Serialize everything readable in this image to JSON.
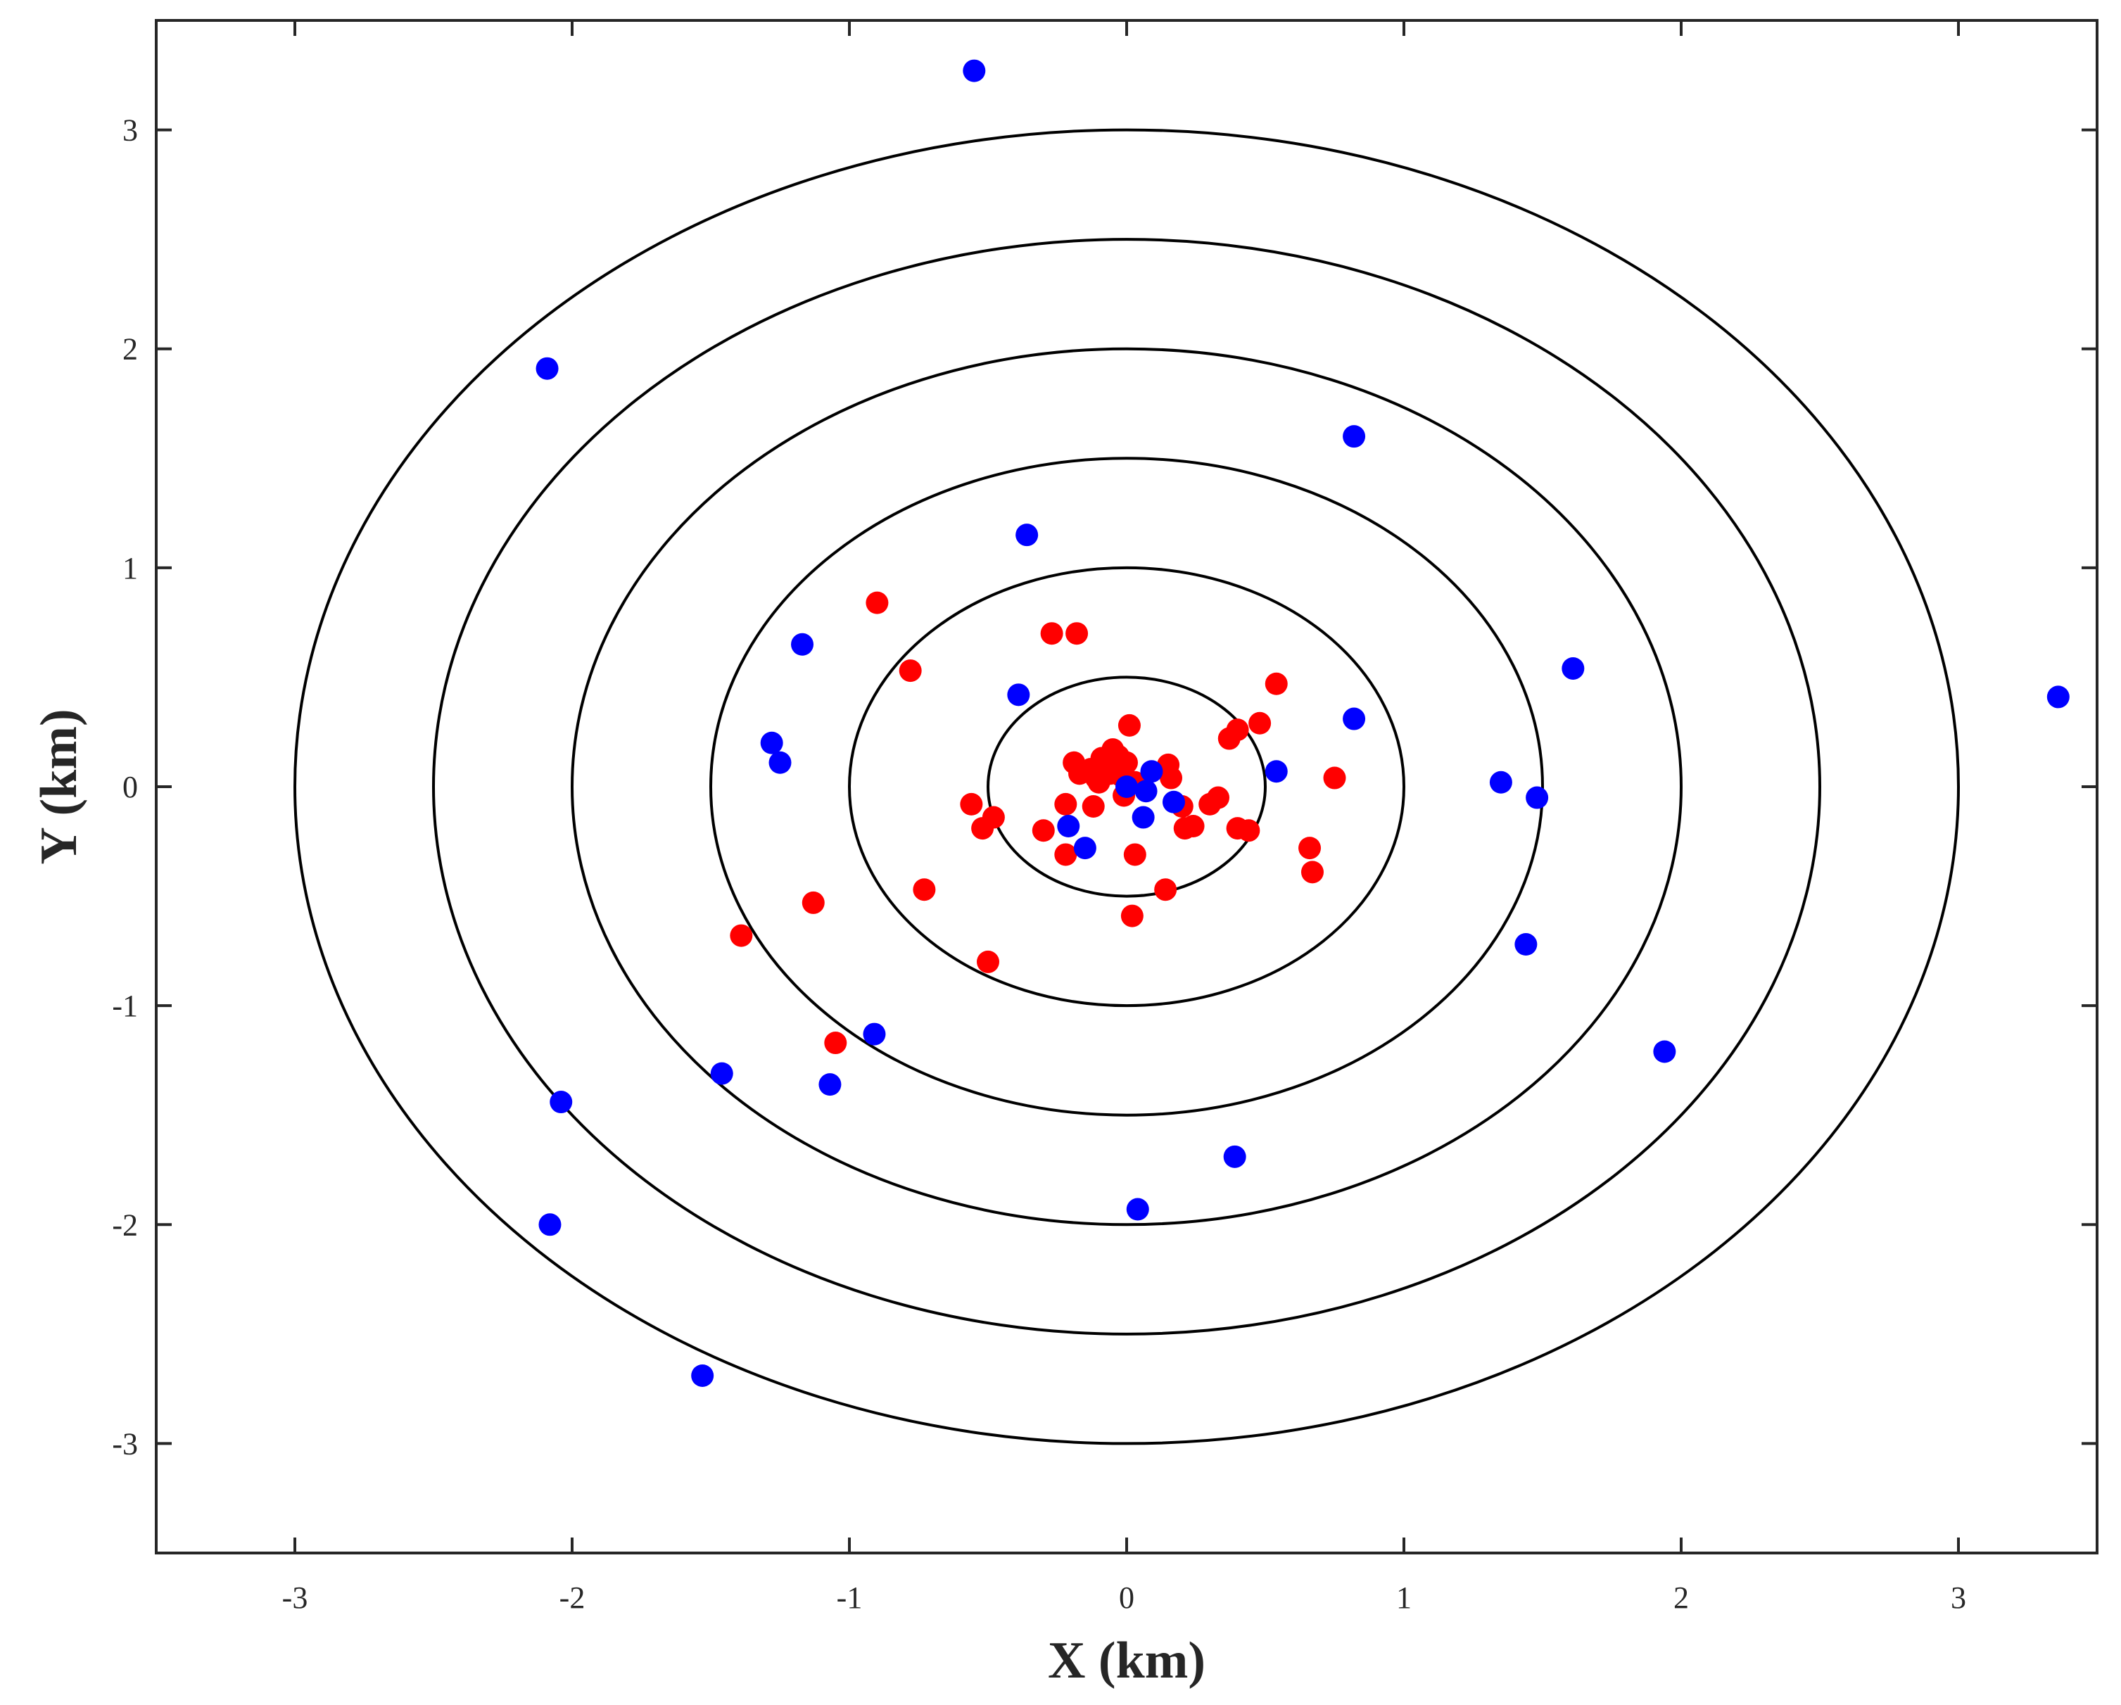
{
  "chart_data": {
    "type": "scatter",
    "title": "",
    "xlabel": "X (km)",
    "ylabel": "Y (km)",
    "xlim": [
      -3.5,
      3.5
    ],
    "ylim": [
      -3.5,
      3.5
    ],
    "x_ticks": [
      -3,
      -2,
      -1,
      0,
      1,
      2,
      3
    ],
    "y_ticks": [
      -3,
      -2,
      -1,
      0,
      1,
      2,
      3
    ],
    "x_tick_labels": [
      "-3",
      "-2",
      "-1",
      "0",
      "1",
      "2",
      "3"
    ],
    "y_tick_labels": [
      "-3",
      "-2",
      "-1",
      "0",
      "1",
      "2",
      "3"
    ],
    "grid": false,
    "box": true,
    "concentric_circles": {
      "center": [
        0,
        0
      ],
      "radii": [
        0.5,
        1.0,
        1.5,
        2.0,
        2.5,
        3.0
      ],
      "color": "#000000"
    },
    "series": [
      {
        "color": "#ff0000",
        "points": [
          [
            -0.9,
            0.84
          ],
          [
            -0.78,
            0.53
          ],
          [
            -0.27,
            0.7
          ],
          [
            -0.18,
            0.7
          ],
          [
            0.54,
            0.47
          ],
          [
            0.48,
            0.29
          ],
          [
            0.4,
            0.26
          ],
          [
            0.37,
            0.22
          ],
          [
            0.01,
            0.28
          ],
          [
            0.75,
            0.04
          ],
          [
            -0.19,
            0.11
          ],
          [
            -0.17,
            0.06
          ],
          [
            -0.13,
            0.08
          ],
          [
            -0.11,
            0.04
          ],
          [
            -0.09,
            0.13
          ],
          [
            -0.07,
            0.1
          ],
          [
            -0.05,
            0.17
          ],
          [
            -0.03,
            0.14
          ],
          [
            -0.02,
            0.05
          ],
          [
            0.0,
            0.11
          ],
          [
            -0.1,
            0.02
          ],
          [
            -0.06,
            0.06
          ],
          [
            0.03,
            0.02
          ],
          [
            -0.01,
            -0.04
          ],
          [
            0.15,
            0.1
          ],
          [
            0.16,
            0.04
          ],
          [
            0.2,
            -0.09
          ],
          [
            0.3,
            -0.08
          ],
          [
            0.33,
            -0.05
          ],
          [
            0.21,
            -0.19
          ],
          [
            0.24,
            -0.18
          ],
          [
            0.4,
            -0.19
          ],
          [
            0.44,
            -0.2
          ],
          [
            0.66,
            -0.28
          ],
          [
            0.67,
            -0.39
          ],
          [
            0.14,
            -0.47
          ],
          [
            0.03,
            -0.31
          ],
          [
            0.02,
            -0.59
          ],
          [
            -0.12,
            -0.09
          ],
          [
            -0.22,
            -0.08
          ],
          [
            -0.3,
            -0.2
          ],
          [
            -0.22,
            -0.31
          ],
          [
            -0.56,
            -0.08
          ],
          [
            -0.48,
            -0.14
          ],
          [
            -0.52,
            -0.19
          ],
          [
            -0.73,
            -0.47
          ],
          [
            -0.5,
            -0.8
          ],
          [
            -1.13,
            -0.53
          ],
          [
            -1.39,
            -0.68
          ],
          [
            -1.05,
            -1.17
          ]
        ]
      },
      {
        "color": "#0000ff",
        "points": [
          [
            -0.55,
            3.27
          ],
          [
            -2.09,
            1.91
          ],
          [
            0.82,
            1.6
          ],
          [
            -0.36,
            1.15
          ],
          [
            -1.17,
            0.65
          ],
          [
            -0.39,
            0.42
          ],
          [
            1.61,
            0.54
          ],
          [
            3.36,
            0.41
          ],
          [
            0.82,
            0.31
          ],
          [
            -1.28,
            0.2
          ],
          [
            -1.25,
            0.11
          ],
          [
            0.54,
            0.07
          ],
          [
            1.35,
            0.02
          ],
          [
            1.48,
            -0.05
          ],
          [
            0.09,
            0.07
          ],
          [
            0.0,
            0.0
          ],
          [
            0.07,
            -0.02
          ],
          [
            0.17,
            -0.07
          ],
          [
            0.06,
            -0.14
          ],
          [
            -0.21,
            -0.18
          ],
          [
            -0.15,
            -0.28
          ],
          [
            1.44,
            -0.72
          ],
          [
            -0.91,
            -1.13
          ],
          [
            -1.46,
            -1.31
          ],
          [
            -1.07,
            -1.36
          ],
          [
            -2.04,
            -1.44
          ],
          [
            0.39,
            -1.69
          ],
          [
            0.04,
            -1.93
          ],
          [
            1.94,
            -1.21
          ],
          [
            -2.08,
            -2.0
          ],
          [
            -1.53,
            -2.69
          ]
        ]
      }
    ]
  }
}
